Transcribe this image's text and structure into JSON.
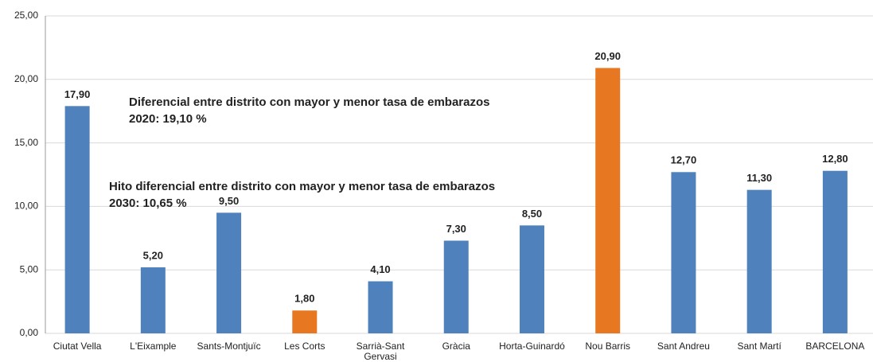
{
  "chart_data": {
    "type": "bar",
    "categories": [
      "Ciutat Vella",
      "L'Eixample",
      "Sants-Montjuïc",
      "Les Corts",
      "Sarrià-Sant Gervasi",
      "Gràcia",
      "Horta-Guinardó",
      "Nou Barris",
      "Sant Andreu",
      "Sant Martí",
      "BARCELONA"
    ],
    "values": [
      17.9,
      5.2,
      9.5,
      1.8,
      4.1,
      7.3,
      8.5,
      20.9,
      12.7,
      11.3,
      12.8
    ],
    "value_labels": [
      "17,90",
      "5,20",
      "9,50",
      "1,80",
      "4,10",
      "7,30",
      "8,50",
      "20,90",
      "12,70",
      "11,30",
      "12,80"
    ],
    "colors": [
      "#4f81bd",
      "#4f81bd",
      "#4f81bd",
      "#e87722",
      "#4f81bd",
      "#4f81bd",
      "#4f81bd",
      "#e87722",
      "#4f81bd",
      "#4f81bd",
      "#4f81bd"
    ],
    "annotation_color": "#e87722",
    "annotations": [
      [
        "Diferencial entre distrito con mayor y menor tasa de embarazos",
        "2020: 19,10 %"
      ],
      [
        "Hito diferencial entre distrito con mayor y menor tasa de embarazos",
        "2030: 10,65 %"
      ]
    ],
    "ylim": [
      0,
      25
    ],
    "yticks": [
      {
        "value": 0,
        "label": "0,00"
      },
      {
        "value": 5,
        "label": "5,00"
      },
      {
        "value": 10,
        "label": "10,00"
      },
      {
        "value": 15,
        "label": "15,00"
      },
      {
        "value": 20,
        "label": "20,00"
      },
      {
        "value": 25,
        "label": "25,00"
      }
    ],
    "grid": true
  }
}
